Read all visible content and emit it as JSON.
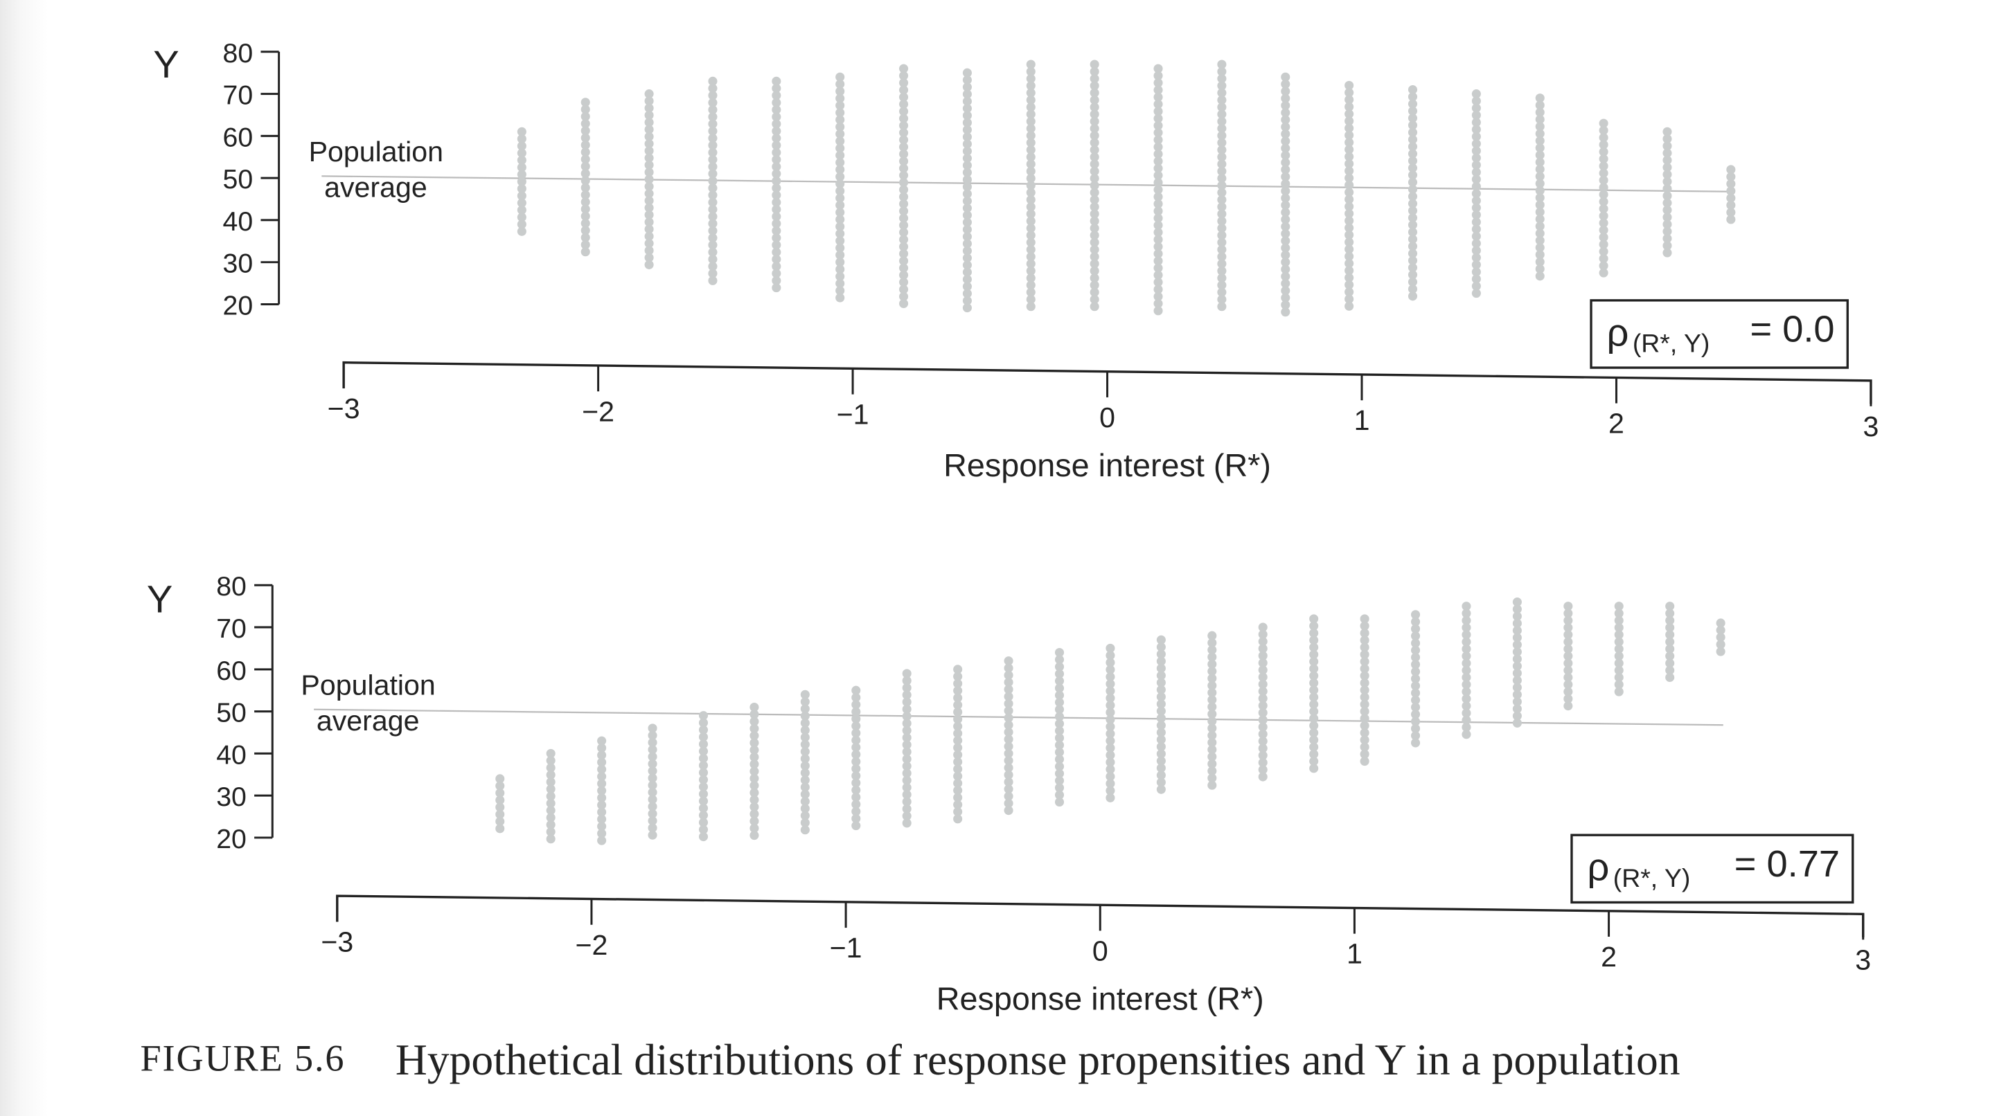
{
  "chart_data": [
    {
      "type": "scatter",
      "title": "",
      "ylabel": "Y",
      "xlabel": "Response interest (R*)",
      "xlim": [
        -3,
        3
      ],
      "ylim": [
        20,
        80
      ],
      "xticks": [
        "−3",
        "−2",
        "−1",
        "0",
        "1",
        "2",
        "3"
      ],
      "yticks": [
        "80",
        "70",
        "60",
        "50",
        "40",
        "30",
        "20"
      ],
      "annotation_line1": "Population",
      "annotation_line2": "average",
      "population_average": 48,
      "rho_label": "ρ",
      "rho_sub": "(R*, Y)",
      "rho_value": "= 0.0",
      "columns": {
        "x": [
          -2.3,
          -2.05,
          -1.8,
          -1.55,
          -1.3,
          -1.05,
          -0.8,
          -0.55,
          -0.3,
          -0.05,
          0.2,
          0.45,
          0.7,
          0.95,
          1.2,
          1.45,
          1.7,
          1.95,
          2.2,
          2.45
        ],
        "y_min": [
          37,
          32,
          28,
          25,
          23,
          21,
          20,
          19,
          18,
          18,
          18,
          18,
          18,
          19,
          21,
          22,
          25,
          27,
          31,
          39
        ],
        "y_max": [
          61,
          68,
          70,
          73,
          73,
          74,
          76,
          75,
          77,
          77,
          76,
          77,
          74,
          72,
          71,
          70,
          69,
          63,
          61,
          52
        ]
      }
    },
    {
      "type": "scatter",
      "title": "",
      "ylabel": "Y",
      "xlabel": "Response interest (R*)",
      "xlim": [
        -3,
        3
      ],
      "ylim": [
        20,
        80
      ],
      "xticks": [
        "−3",
        "−2",
        "−1",
        "0",
        "1",
        "2",
        "3"
      ],
      "yticks": [
        "80",
        "70",
        "60",
        "50",
        "40",
        "30",
        "20"
      ],
      "annotation_line1": "Population",
      "annotation_line2": "average",
      "population_average": 48,
      "rho_label": "ρ",
      "rho_sub": "(R*, Y)",
      "rho_value": "= 0.77",
      "columns": {
        "x": [
          -2.36,
          -2.16,
          -1.96,
          -1.76,
          -1.56,
          -1.36,
          -1.16,
          -0.96,
          -0.76,
          -0.56,
          -0.36,
          -0.16,
          0.04,
          0.24,
          0.44,
          0.64,
          0.84,
          1.04,
          1.24,
          1.44,
          1.64,
          1.84,
          2.04,
          2.24,
          2.44
        ],
        "y_min": [
          21,
          19,
          18,
          19,
          19,
          20,
          21,
          22,
          23,
          24,
          26,
          27,
          29,
          30,
          32,
          34,
          36,
          38,
          41,
          43,
          46,
          50,
          53,
          57,
          64
        ],
        "y_max": [
          34,
          40,
          43,
          46,
          49,
          51,
          54,
          55,
          59,
          60,
          62,
          64,
          65,
          67,
          68,
          70,
          72,
          72,
          73,
          75,
          76,
          75,
          75,
          75,
          71
        ]
      }
    }
  ],
  "caption": {
    "label": "FIGURE 5.6",
    "text": "Hypothetical distributions of response propensities and Y in a population"
  }
}
